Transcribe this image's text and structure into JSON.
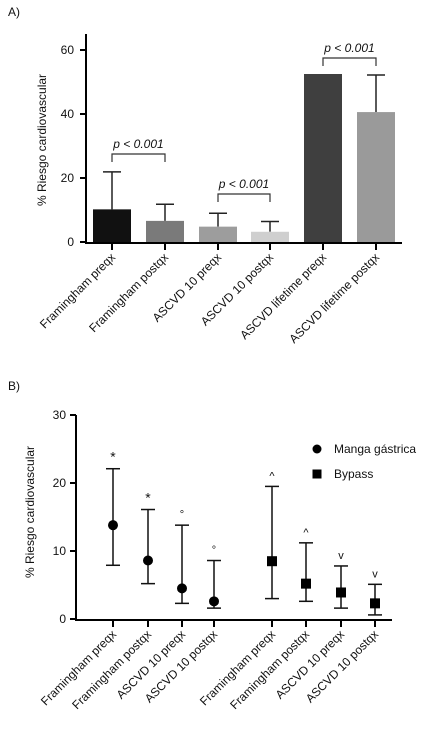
{
  "chart_data": [
    {
      "type": "bar",
      "panel_label": "A)",
      "title": "",
      "xlabel": "",
      "ylabel": "% Riesgo cardiovascular",
      "ylim": [
        0,
        65
      ],
      "yticks": [
        0,
        20,
        40,
        60
      ],
      "categories": [
        "Framingham preqx",
        "Framingham postqx",
        "ASCVD 10 preqx",
        "ASCVD 10 postqx",
        "ASCVD lifetime preqx",
        "ASCVD lifetime postqx"
      ],
      "values": [
        10.2,
        6.6,
        4.8,
        3.2,
        52.5,
        40.6
      ],
      "error_upper": [
        21.9,
        11.8,
        9.0,
        6.4,
        52.5,
        52.2
      ],
      "bar_colors": [
        "#111111",
        "#7a7a7a",
        "#9d9d9d",
        "#cfcfcf",
        "#3f3f3f",
        "#9a9a9a"
      ],
      "annotations": [
        {
          "text": "p < 0.001",
          "between": [
            0,
            1
          ],
          "bracket_y": 27.5
        },
        {
          "text": "p < 0.001",
          "between": [
            2,
            3
          ],
          "bracket_y": 15.0
        },
        {
          "text": "p < 0.001",
          "between": [
            4,
            5
          ],
          "bracket_y": 57.5
        }
      ],
      "grid": false
    },
    {
      "type": "scatter",
      "panel_label": "B)",
      "title": "",
      "xlabel": "",
      "ylabel": "% Riesgo cardiovascular",
      "ylim": [
        0,
        30
      ],
      "yticks": [
        0,
        10,
        20,
        30
      ],
      "categories": [
        "Framingham preqx",
        "Framingham postqx",
        "ASCVD 10 preqx",
        "ASCVD 10 postqx",
        "Framingham preqx",
        "Framingham postqx",
        "ASCVD 10 preqx",
        "ASCVD 10 postqx"
      ],
      "series": [
        {
          "name": "Manga gástrica",
          "marker": "circle",
          "indices": [
            0,
            1,
            2,
            3
          ],
          "values": [
            13.8,
            8.6,
            4.5,
            2.6
          ],
          "error_low": [
            7.9,
            5.2,
            2.3,
            1.6
          ],
          "error_high": [
            22.1,
            16.1,
            13.8,
            8.6
          ],
          "markers_above": [
            "*",
            "*",
            "°",
            "°"
          ]
        },
        {
          "name": "Bypass",
          "marker": "square",
          "indices": [
            4,
            5,
            6,
            7
          ],
          "values": [
            8.5,
            5.2,
            3.9,
            2.3
          ],
          "error_low": [
            3.0,
            2.6,
            1.6,
            0.6
          ],
          "error_high": [
            19.5,
            11.2,
            7.8,
            5.1
          ],
          "markers_above": [
            "^",
            "^",
            "v",
            "v"
          ]
        }
      ],
      "legend_position": "top-right",
      "grid": false
    }
  ]
}
